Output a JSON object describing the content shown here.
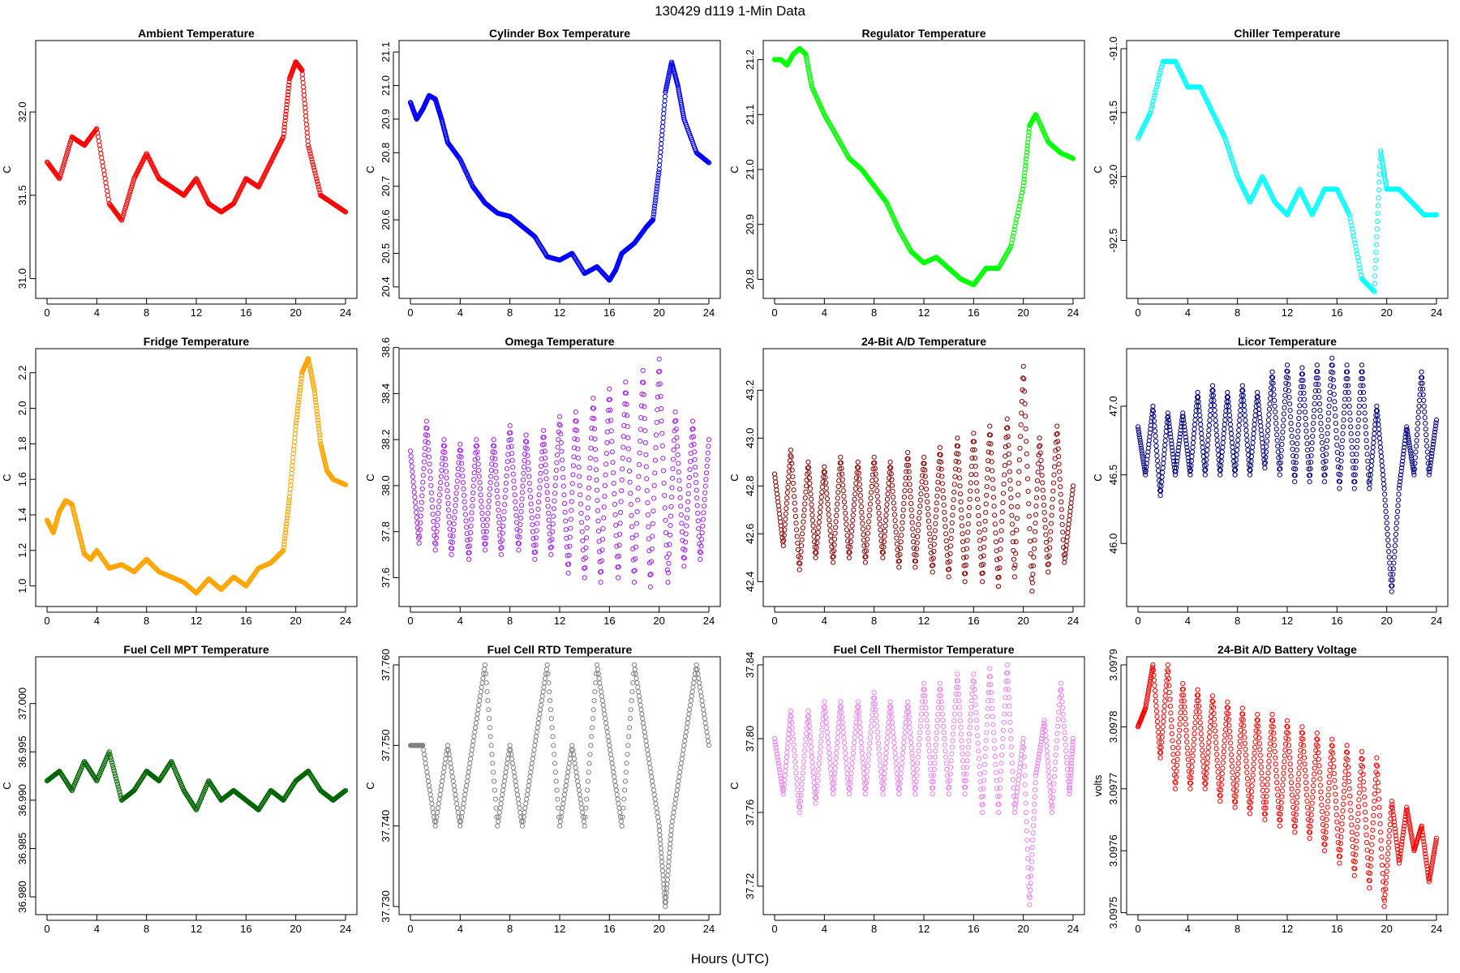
{
  "figure": {
    "title": "130429    d119    1-Min Data",
    "xlabel": "Hours (UTC)"
  },
  "chart_data": [
    {
      "type": "scatter",
      "title": "Ambient Temperature",
      "ylabel": "C",
      "color": "#ff0000",
      "xlim": [
        0,
        24
      ],
      "ylim": [
        30.93,
        32.38
      ],
      "xticks": [
        "0",
        "4",
        "8",
        "12",
        "16",
        "20",
        "24"
      ],
      "yticks": [
        "31.0",
        "31.5",
        "32.0"
      ],
      "x": [
        0,
        1,
        2,
        3,
        4,
        5,
        6,
        7,
        8,
        9,
        10,
        11,
        12,
        13,
        14,
        15,
        16,
        17,
        18,
        19,
        19.5,
        20,
        20.5,
        21,
        22,
        23,
        24
      ],
      "y": [
        31.7,
        31.6,
        31.85,
        31.8,
        31.9,
        31.45,
        31.35,
        31.6,
        31.75,
        31.6,
        31.55,
        31.5,
        31.6,
        31.45,
        31.4,
        31.45,
        31.6,
        31.55,
        31.7,
        31.85,
        32.2,
        32.3,
        32.25,
        31.8,
        31.5,
        31.45,
        31.4
      ]
    },
    {
      "type": "scatter",
      "title": "Cylinder Box Temperature",
      "ylabel": "C",
      "color": "#0000ff",
      "xlim": [
        0,
        24
      ],
      "ylim": [
        20.39,
        21.11
      ],
      "xticks": [
        "0",
        "4",
        "8",
        "12",
        "16",
        "20",
        "24"
      ],
      "yticks": [
        "20.4",
        "20.5",
        "20.6",
        "20.7",
        "20.8",
        "20.9",
        "21.0",
        "21.1"
      ],
      "x": [
        0,
        0.5,
        1,
        1.5,
        2,
        2.5,
        3,
        4,
        5,
        6,
        7,
        8,
        9,
        10,
        11,
        12,
        13,
        14,
        15,
        16,
        16.5,
        17,
        18,
        19,
        19.5,
        20,
        20.5,
        21,
        21.5,
        22,
        23,
        24
      ],
      "y": [
        20.95,
        20.9,
        20.93,
        20.97,
        20.96,
        20.9,
        20.83,
        20.78,
        20.7,
        20.65,
        20.62,
        20.61,
        20.58,
        20.55,
        20.49,
        20.48,
        20.5,
        20.44,
        20.46,
        20.42,
        20.45,
        20.5,
        20.53,
        20.58,
        20.6,
        20.75,
        20.98,
        21.07,
        21.0,
        20.9,
        20.8,
        20.77
      ]
    },
    {
      "type": "scatter",
      "title": "Regulator Temperature",
      "ylabel": "C",
      "color": "#00ff00",
      "xlim": [
        0,
        24
      ],
      "ylim": [
        20.78,
        21.22
      ],
      "xticks": [
        "0",
        "4",
        "8",
        "12",
        "16",
        "20",
        "24"
      ],
      "yticks": [
        "20.8",
        "20.9",
        "21.0",
        "21.1",
        "21.2"
      ],
      "x": [
        0,
        0.5,
        1,
        1.5,
        2,
        2.5,
        3,
        4,
        5,
        6,
        7,
        8,
        9,
        10,
        11,
        12,
        13,
        14,
        15,
        16,
        17,
        18,
        19,
        20,
        20.5,
        21,
        22,
        23,
        24
      ],
      "y": [
        21.2,
        21.2,
        21.19,
        21.21,
        21.22,
        21.21,
        21.15,
        21.1,
        21.06,
        21.02,
        21.0,
        20.97,
        20.94,
        20.89,
        20.85,
        20.83,
        20.84,
        20.82,
        20.8,
        20.79,
        20.82,
        20.82,
        20.86,
        20.97,
        21.08,
        21.1,
        21.05,
        21.03,
        21.02
      ]
    },
    {
      "type": "scatter",
      "title": "Chiller Temperature",
      "ylabel": "C",
      "color": "#00ffff",
      "xlim": [
        0,
        24
      ],
      "ylim": [
        -92.89,
        -91.0
      ],
      "xticks": [
        "0",
        "4",
        "8",
        "12",
        "16",
        "20",
        "24"
      ],
      "yticks": [
        "-91.0",
        "-91.5",
        "-92.0",
        "-92.5"
      ],
      "x": [
        0,
        1,
        2,
        3,
        4,
        5,
        6,
        7,
        8,
        9,
        10,
        11,
        12,
        13,
        14,
        15,
        16,
        17,
        18,
        19,
        19.5,
        20,
        21,
        22,
        23,
        24
      ],
      "y": [
        -91.7,
        -91.5,
        -91.1,
        -91.1,
        -91.3,
        -91.3,
        -91.5,
        -91.7,
        -92.0,
        -92.2,
        -92.0,
        -92.2,
        -92.3,
        -92.1,
        -92.3,
        -92.1,
        -92.1,
        -92.3,
        -92.8,
        -92.9,
        -91.8,
        -92.1,
        -92.1,
        -92.2,
        -92.3,
        -92.3
      ]
    },
    {
      "type": "scatter",
      "title": "Fridge Temperature",
      "ylabel": "C",
      "color": "#ffa500",
      "xlim": [
        0,
        24
      ],
      "ylim": [
        0.93,
        2.29
      ],
      "xticks": [
        "0",
        "4",
        "8",
        "12",
        "16",
        "20",
        "24"
      ],
      "yticks": [
        "1.0",
        "1.2",
        "1.4",
        "1.6",
        "1.8",
        "2.0",
        "2.2"
      ],
      "x": [
        0,
        0.5,
        1,
        1.5,
        2,
        2.5,
        3,
        3.5,
        4,
        5,
        6,
        7,
        8,
        9,
        10,
        11,
        12,
        13,
        14,
        15,
        16,
        17,
        18,
        19,
        19.5,
        20,
        20.5,
        21,
        21.5,
        22,
        22.5,
        23,
        24
      ],
      "y": [
        1.37,
        1.3,
        1.42,
        1.48,
        1.46,
        1.32,
        1.18,
        1.15,
        1.2,
        1.1,
        1.12,
        1.08,
        1.15,
        1.08,
        1.05,
        1.02,
        0.96,
        1.04,
        0.98,
        1.05,
        1.0,
        1.1,
        1.13,
        1.2,
        1.5,
        1.9,
        2.2,
        2.28,
        2.1,
        1.8,
        1.65,
        1.6,
        1.57
      ]
    },
    {
      "type": "scatter",
      "title": "Omega Temperature",
      "ylabel": "C",
      "color": "#a020f0",
      "xlim": [
        0,
        24
      ],
      "ylim": [
        37.51,
        38.56
      ],
      "xticks": [
        "0",
        "4",
        "8",
        "12",
        "16",
        "20",
        "24"
      ],
      "yticks": [
        "37.6",
        "37.8",
        "38.0",
        "38.2",
        "38.4",
        "38.6"
      ],
      "x": [
        0,
        0.7,
        1.3,
        2,
        2.7,
        3.3,
        4,
        4.7,
        5.3,
        6,
        6.7,
        7.3,
        8,
        8.7,
        9.3,
        10,
        10.7,
        11.3,
        12,
        12.7,
        13.3,
        14,
        14.7,
        15.3,
        16,
        16.7,
        17.3,
        18,
        18.7,
        19.3,
        20,
        20.7,
        21.3,
        22,
        22.7,
        23.3,
        24
      ],
      "y": [
        38.15,
        37.75,
        38.28,
        37.72,
        38.2,
        37.7,
        38.18,
        37.68,
        38.2,
        37.72,
        38.2,
        37.7,
        38.26,
        37.72,
        38.22,
        37.68,
        38.24,
        37.7,
        38.3,
        37.62,
        38.32,
        37.6,
        38.38,
        37.58,
        38.42,
        37.6,
        38.45,
        37.58,
        38.5,
        37.56,
        38.55,
        37.58,
        38.32,
        37.65,
        38.28,
        37.68,
        38.2
      ]
    },
    {
      "type": "scatter",
      "title": "24-Bit A/D Temperature",
      "ylabel": "C",
      "color": "#8b0000",
      "xlim": [
        0,
        24
      ],
      "ylim": [
        42.33,
        43.34
      ],
      "xticks": [
        "0",
        "4",
        "8",
        "12",
        "16",
        "20",
        "24"
      ],
      "yticks": [
        "42.4",
        "42.6",
        "42.8",
        "43.0",
        "43.2"
      ],
      "x": [
        0,
        0.7,
        1.3,
        2,
        2.7,
        3.3,
        4,
        4.7,
        5.3,
        6,
        6.7,
        7.3,
        8,
        8.7,
        9.3,
        10,
        10.7,
        11.3,
        12,
        12.7,
        13.3,
        14,
        14.7,
        15.3,
        16,
        16.7,
        17.3,
        18,
        18.7,
        19.3,
        20,
        20.7,
        21.3,
        22,
        22.7,
        23.3,
        24
      ],
      "y": [
        42.85,
        42.55,
        42.95,
        42.45,
        42.9,
        42.5,
        42.88,
        42.48,
        42.92,
        42.5,
        42.9,
        42.48,
        42.92,
        42.5,
        42.9,
        42.46,
        42.94,
        42.46,
        42.92,
        42.44,
        42.96,
        42.42,
        43.0,
        42.4,
        43.02,
        42.4,
        43.05,
        42.38,
        43.08,
        42.42,
        43.3,
        42.36,
        43.0,
        42.44,
        43.05,
        42.48,
        42.8
      ]
    },
    {
      "type": "scatter",
      "title": "Licor Temperature",
      "ylabel": "C",
      "color": "#000080",
      "xlim": [
        0,
        24
      ],
      "ylim": [
        45.6,
        47.36
      ],
      "xticks": [
        "0",
        "4",
        "8",
        "12",
        "16",
        "20",
        "24"
      ],
      "yticks": [
        "46.0",
        "46.5",
        "47.0"
      ],
      "x": [
        0,
        0.6,
        1.2,
        1.8,
        2.4,
        3,
        3.6,
        4.2,
        4.8,
        5.4,
        6,
        6.6,
        7.2,
        7.8,
        8.4,
        9,
        9.6,
        10.2,
        10.8,
        11.4,
        12,
        12.6,
        13.2,
        13.8,
        14.4,
        15,
        15.6,
        16.2,
        16.8,
        17.4,
        18,
        18.6,
        19.2,
        19.8,
        20.4,
        21,
        21.6,
        22.2,
        22.8,
        23.4,
        24
      ],
      "y": [
        46.85,
        46.5,
        47.0,
        46.35,
        46.95,
        46.5,
        46.95,
        46.5,
        47.1,
        46.5,
        47.15,
        46.5,
        47.1,
        46.5,
        47.15,
        46.5,
        47.1,
        46.55,
        47.25,
        46.5,
        47.3,
        46.45,
        47.28,
        46.45,
        47.3,
        46.45,
        47.35,
        46.4,
        47.3,
        46.4,
        47.3,
        46.4,
        47.0,
        46.4,
        45.65,
        46.4,
        46.85,
        46.5,
        47.25,
        46.5,
        46.9
      ]
    },
    {
      "type": "scatter",
      "title": "Fuel Cell MPT Temperature",
      "ylabel": "C",
      "color": "#006400",
      "xlim": [
        0,
        24
      ],
      "ylim": [
        36.979,
        37.004
      ],
      "xticks": [
        "0",
        "4",
        "8",
        "12",
        "16",
        "20",
        "24"
      ],
      "yticks": [
        "36.980",
        "36.985",
        "36.990",
        "36.995",
        "37.000"
      ],
      "x": [
        0,
        1,
        2,
        3,
        4,
        5,
        6,
        7,
        8,
        9,
        10,
        11,
        12,
        13,
        14,
        15,
        16,
        17,
        18,
        19,
        20,
        21,
        22,
        23,
        24
      ],
      "y": [
        36.992,
        36.993,
        36.991,
        36.994,
        36.992,
        36.995,
        36.99,
        36.991,
        36.993,
        36.992,
        36.994,
        36.991,
        36.989,
        36.992,
        36.99,
        36.991,
        36.99,
        36.989,
        36.991,
        36.99,
        36.992,
        36.993,
        36.991,
        36.99,
        36.991
      ]
    },
    {
      "type": "scatter",
      "title": "Fuel Cell RTD Temperature",
      "ylabel": "C",
      "color": "#808080",
      "xlim": [
        0,
        24
      ],
      "ylim": [
        37.73,
        37.76
      ],
      "xticks": [
        "0",
        "4",
        "8",
        "12",
        "16",
        "20",
        "24"
      ],
      "yticks": [
        "37.730",
        "37.740",
        "37.750",
        "37.760"
      ],
      "x": [
        0,
        1,
        2,
        3,
        4,
        5,
        6,
        7,
        8,
        9,
        10,
        11,
        12,
        13,
        14,
        15,
        16,
        17,
        18,
        19,
        20,
        20.5,
        21,
        22,
        23,
        24
      ],
      "y": [
        37.75,
        37.75,
        37.74,
        37.75,
        37.74,
        37.75,
        37.76,
        37.74,
        37.75,
        37.74,
        37.75,
        37.76,
        37.74,
        37.75,
        37.74,
        37.76,
        37.75,
        37.74,
        37.76,
        37.75,
        37.74,
        37.73,
        37.74,
        37.75,
        37.76,
        37.75
      ]
    },
    {
      "type": "scatter",
      "title": "Fuel Cell Thermistor Temperature",
      "ylabel": "C",
      "color": "#ee82ee",
      "xlim": [
        0,
        24
      ],
      "ylim": [
        37.709,
        37.84
      ],
      "xticks": [
        "0",
        "4",
        "8",
        "12",
        "16",
        "20",
        "24"
      ],
      "yticks": [
        "37.72",
        "37.76",
        "37.80",
        "37.84"
      ],
      "x": [
        0,
        0.7,
        1.3,
        2,
        2.7,
        3.3,
        4,
        4.7,
        5.3,
        6,
        6.7,
        7.3,
        8,
        8.7,
        9.3,
        10,
        10.7,
        11.3,
        12,
        12.7,
        13.3,
        14,
        14.7,
        15.3,
        16,
        16.7,
        17.3,
        18,
        18.7,
        19.3,
        20,
        20.5,
        21,
        21.7,
        22.3,
        23,
        23.7,
        24
      ],
      "y": [
        37.8,
        37.77,
        37.815,
        37.76,
        37.815,
        37.765,
        37.82,
        37.77,
        37.82,
        37.77,
        37.82,
        37.77,
        37.825,
        37.77,
        37.82,
        37.77,
        37.82,
        37.77,
        37.83,
        37.77,
        37.83,
        37.77,
        37.835,
        37.77,
        37.835,
        37.76,
        37.838,
        37.76,
        37.84,
        37.76,
        37.8,
        37.71,
        37.78,
        37.81,
        37.76,
        37.83,
        37.77,
        37.8
      ]
    },
    {
      "type": "scatter",
      "title": "24-Bit A/D Battery Voltage",
      "ylabel": "volts",
      "color": "#ff0000",
      "xlim": [
        0,
        24
      ],
      "ylim": [
        3.09751,
        3.0979
      ],
      "xticks": [
        "0",
        "4",
        "8",
        "12",
        "16",
        "20",
        "24"
      ],
      "yticks": [
        "3.0975",
        "3.0976",
        "3.0977",
        "3.0978",
        "3.0979"
      ],
      "x": [
        0,
        0.6,
        1.2,
        1.8,
        2.4,
        3,
        3.6,
        4.2,
        4.8,
        5.4,
        6,
        6.6,
        7.2,
        7.8,
        8.4,
        9,
        9.6,
        10.2,
        10.8,
        11.4,
        12,
        12.6,
        13.2,
        13.8,
        14.4,
        15,
        15.6,
        16.2,
        16.8,
        17.4,
        18,
        18.6,
        19.2,
        19.8,
        20.4,
        21,
        21.6,
        22.2,
        22.8,
        23.4,
        24
      ],
      "y": [
        3.0978,
        3.09783,
        3.0979,
        3.09775,
        3.0979,
        3.0977,
        3.09787,
        3.0977,
        3.09786,
        3.0977,
        3.09785,
        3.09768,
        3.09784,
        3.09767,
        3.09783,
        3.09766,
        3.09782,
        3.09765,
        3.09782,
        3.09764,
        3.09781,
        3.09763,
        3.0978,
        3.09762,
        3.09779,
        3.0976,
        3.09778,
        3.09758,
        3.09777,
        3.09756,
        3.09776,
        3.09754,
        3.09775,
        3.09751,
        3.09768,
        3.09758,
        3.09767,
        3.0976,
        3.09764,
        3.09755,
        3.09762
      ]
    }
  ]
}
